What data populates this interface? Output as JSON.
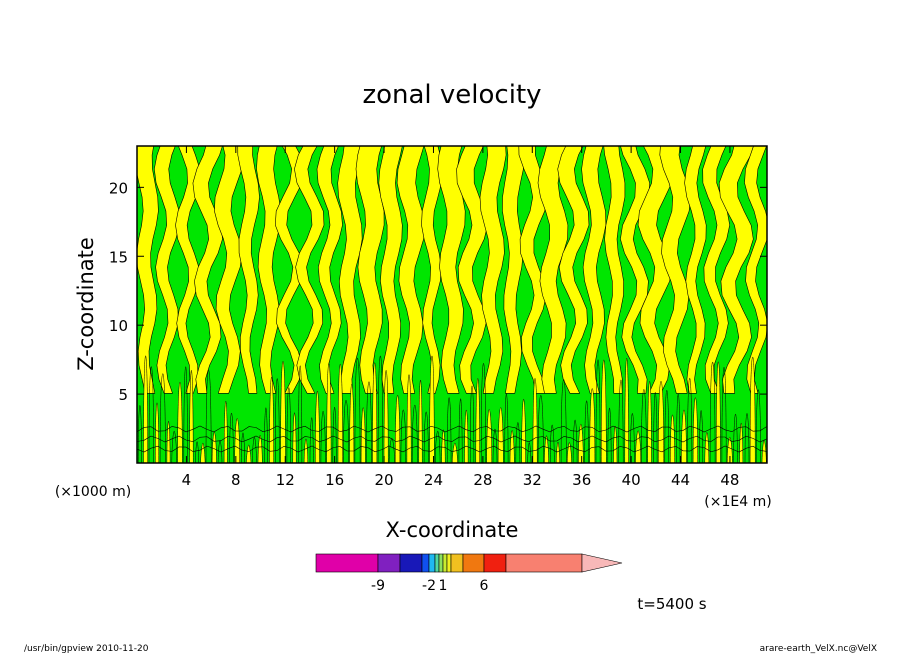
{
  "chart_data": {
    "type": "heatmap",
    "title": "zonal velocity",
    "xlabel": "X-coordinate",
    "ylabel": "Z-coordinate",
    "x_unit_left": "(×1000 m)",
    "x_unit_right": "(×1E4 m)",
    "x_ticks": [
      4,
      8,
      12,
      16,
      20,
      24,
      28,
      32,
      36,
      40,
      44,
      48
    ],
    "y_ticks": [
      5,
      10,
      15,
      20
    ],
    "xlim": [
      0,
      51
    ],
    "ylim": [
      0,
      23
    ],
    "colorbar": {
      "colors": [
        "#e000a8",
        "#8020c0",
        "#1818b8",
        "#1050f0",
        "#20b8f0",
        "#50d8a0",
        "#8ce060",
        "#c8ec30",
        "#f0f020",
        "#f0c020",
        "#f07810",
        "#f02010",
        "#f88070"
      ],
      "tick_labels": [
        "-9",
        "-2",
        "1",
        "6"
      ]
    },
    "time_label": "t=5400 s",
    "footer_left": "/usr/bin/gpview   2010-11-20",
    "footer_right": "arare-earth_VelX.nc@VelX",
    "field_colors": {
      "negative": "#ffff00",
      "positive": "#00e600",
      "contour": "#000000"
    }
  }
}
